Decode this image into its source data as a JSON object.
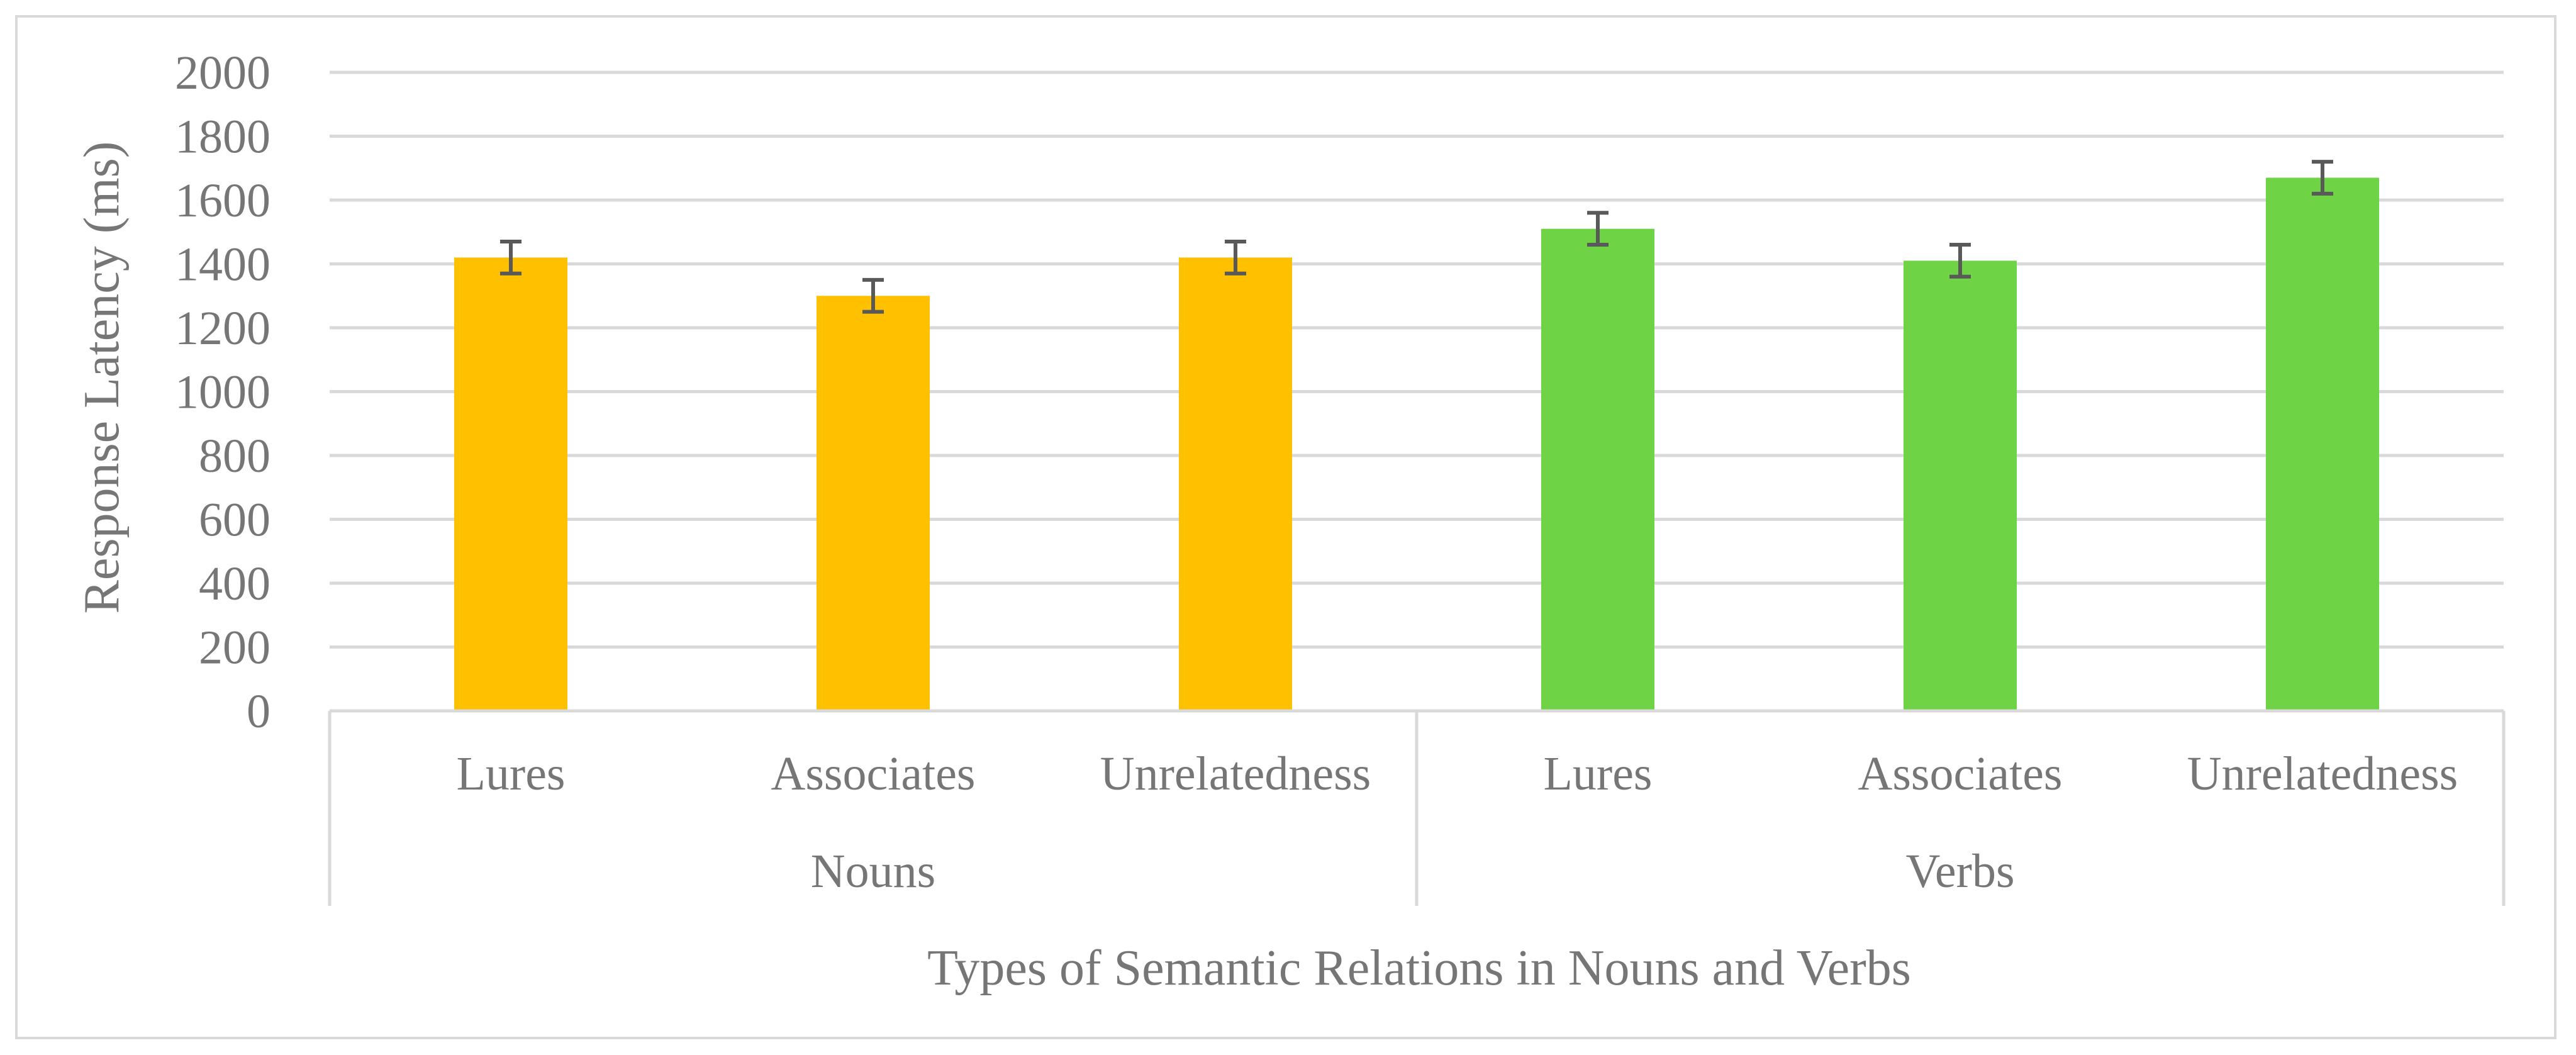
{
  "chart_data": {
    "type": "bar",
    "title": "",
    "xlabel": "Types of Semantic Relations in Nouns and Verbs",
    "ylabel": "Response Latency (ms)",
    "ylim": [
      0,
      2000
    ],
    "y_ticks": [
      0,
      200,
      400,
      600,
      800,
      1000,
      1200,
      1400,
      1600,
      1800,
      2000
    ],
    "grid": true,
    "legend": "none",
    "groups": [
      {
        "name": "Nouns",
        "color": "#FFC000",
        "categories": [
          "Lures",
          "Associates",
          "Unrelatedness"
        ],
        "values": [
          1420,
          1300,
          1420
        ],
        "errors": [
          50,
          50,
          50
        ]
      },
      {
        "name": "Verbs",
        "color": "#6FD346",
        "categories": [
          "Lures",
          "Associates",
          "Unrelatedness"
        ],
        "values": [
          1510,
          1410,
          1670
        ],
        "errors": [
          50,
          50,
          50
        ]
      }
    ]
  }
}
